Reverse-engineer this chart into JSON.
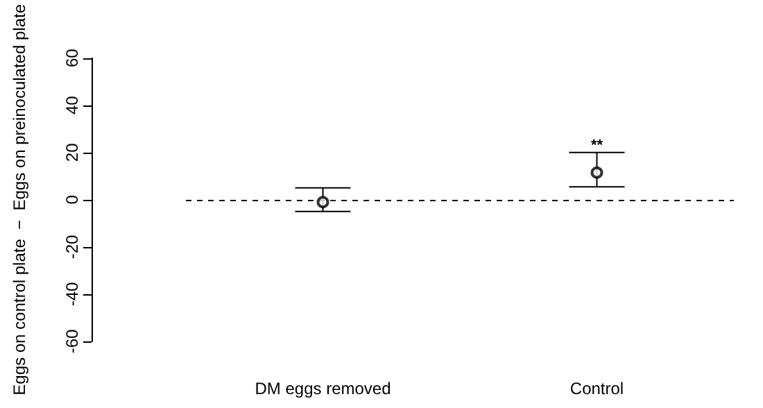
{
  "chart_data": {
    "type": "scatter",
    "ylabel": "Eggs on control plate  −  Eggs on preinoculated plate",
    "categories": [
      "DM eggs removed",
      "Control"
    ],
    "series": [
      {
        "color": "#000000",
        "values": [
          -1,
          11.5
        ],
        "errors": [
          [
            -5,
            5
          ],
          [
            5.5,
            20
          ]
        ]
      }
    ],
    "ylim": [
      -60,
      60
    ],
    "yticks": [
      -60,
      -40,
      -20,
      0,
      20,
      40,
      60
    ],
    "ref_lines": [
      {
        "axis": "y",
        "value": 0,
        "color": "#000000",
        "line_style": "dashed"
      }
    ],
    "annotations": [
      {
        "text": "**",
        "x": "Control",
        "y": 23
      }
    ],
    "marker": "circle",
    "grid": false
  }
}
